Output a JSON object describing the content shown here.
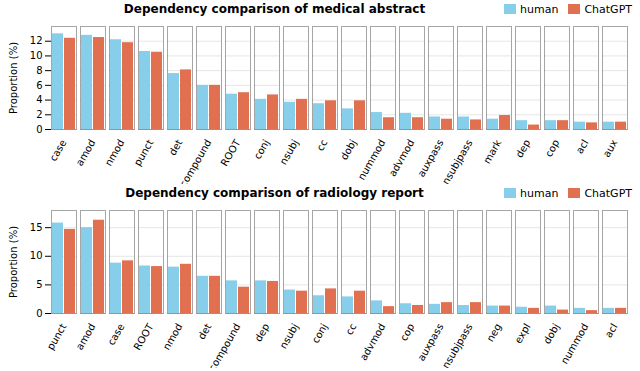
{
  "chart_data": [
    {
      "type": "bar",
      "title": "Dependency comparison of medical abstract",
      "categories": [
        "case",
        "amod",
        "nmod",
        "punct",
        "det",
        "compound",
        "ROOT",
        "conj",
        "nsubj",
        "cc",
        "dobj",
        "nummod",
        "advmod",
        "auxpass",
        "nsubjpass",
        "mark",
        "dep",
        "cop",
        "acl",
        "aux"
      ],
      "series": [
        {
          "name": "human",
          "color": "#87CEEB",
          "values": [
            13.0,
            12.8,
            12.2,
            10.6,
            7.6,
            6.0,
            4.8,
            4.1,
            3.7,
            3.5,
            2.8,
            2.3,
            2.2,
            1.7,
            1.7,
            1.4,
            1.2,
            1.2,
            1.0,
            1.0
          ]
        },
        {
          "name": "ChatGPT",
          "color": "#E07050",
          "values": [
            12.4,
            12.5,
            11.8,
            10.5,
            8.1,
            6.0,
            5.0,
            4.7,
            4.1,
            3.9,
            3.9,
            1.6,
            1.6,
            1.4,
            1.3,
            1.9,
            0.6,
            1.2,
            0.9,
            1.0
          ]
        }
      ],
      "ylabel": "Proportion (%)",
      "ylim": [
        0,
        14
      ],
      "yticks": [
        0,
        2,
        4,
        6,
        8,
        10,
        12
      ],
      "grid": true,
      "legend": "upper right"
    },
    {
      "type": "bar",
      "title": "Dependency comparison of radiology report",
      "categories": [
        "punct",
        "amod",
        "case",
        "ROOT",
        "nmod",
        "det",
        "compound",
        "dep",
        "nsubj",
        "conj",
        "cc",
        "advmod",
        "cop",
        "auxpass",
        "nsubjpass",
        "neg",
        "expl",
        "dobj",
        "nummod",
        "acl"
      ],
      "series": [
        {
          "name": "human",
          "color": "#87CEEB",
          "values": [
            15.8,
            15.0,
            8.8,
            8.3,
            8.1,
            6.5,
            5.7,
            5.7,
            4.1,
            3.1,
            2.9,
            2.2,
            1.7,
            1.6,
            1.4,
            1.3,
            1.1,
            1.3,
            0.9,
            0.9
          ]
        },
        {
          "name": "ChatGPT",
          "color": "#E07050",
          "values": [
            14.7,
            16.3,
            9.2,
            8.2,
            8.6,
            6.5,
            4.6,
            5.6,
            3.9,
            4.3,
            3.9,
            1.2,
            1.4,
            1.9,
            1.9,
            1.3,
            0.9,
            0.6,
            0.5,
            0.9
          ]
        }
      ],
      "ylabel": "Proportion (%)",
      "ylim": [
        0,
        18
      ],
      "yticks": [
        0,
        5,
        10,
        15
      ],
      "grid": true,
      "legend": "upper right"
    }
  ]
}
